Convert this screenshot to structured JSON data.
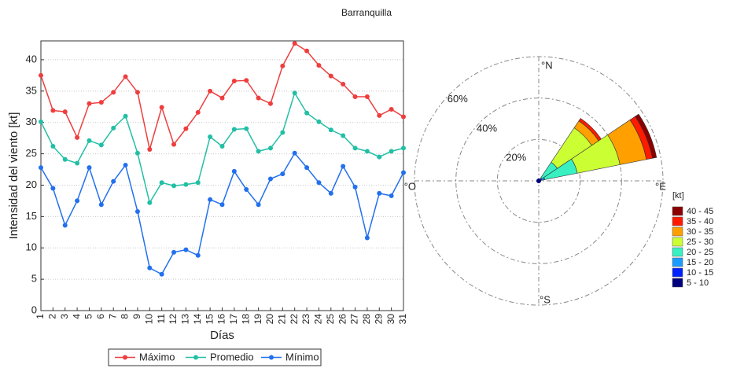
{
  "title": "Barranquilla",
  "chart_data": [
    {
      "type": "line",
      "x": [
        1,
        2,
        3,
        4,
        5,
        6,
        7,
        8,
        9,
        10,
        11,
        12,
        13,
        14,
        15,
        16,
        17,
        18,
        19,
        20,
        21,
        22,
        23,
        24,
        25,
        26,
        27,
        28,
        29,
        30,
        31
      ],
      "xlim": [
        1,
        31
      ],
      "xticks": [
        1,
        2,
        3,
        4,
        5,
        6,
        7,
        8,
        9,
        10,
        11,
        12,
        13,
        14,
        15,
        16,
        17,
        18,
        19,
        20,
        21,
        22,
        23,
        24,
        25,
        26,
        27,
        28,
        29,
        30,
        31
      ],
      "ylim": [
        0,
        43
      ],
      "yticks": [
        0,
        5,
        10,
        15,
        20,
        25,
        30,
        35,
        40
      ],
      "xlabel": "Días",
      "ylabel": "Intensidad del viento [kt]",
      "grid": true,
      "legend": "bottom",
      "series": [
        {
          "name": "Máximo",
          "color": "#ee3e3e",
          "values": [
            37.5,
            31.9,
            31.7,
            27.6,
            33.0,
            33.2,
            34.8,
            37.3,
            34.8,
            25.7,
            32.4,
            26.5,
            29.0,
            31.6,
            35.0,
            33.9,
            36.6,
            36.7,
            33.9,
            33.0,
            39.0,
            42.6,
            41.4,
            39.1,
            37.4,
            36.1,
            34.1,
            34.1,
            31.1,
            32.1,
            30.9
          ]
        },
        {
          "name": "Promedio",
          "color": "#22bfa5",
          "values": [
            30.1,
            26.2,
            24.1,
            23.5,
            27.1,
            26.4,
            29.1,
            31.0,
            25.1,
            17.2,
            20.4,
            19.9,
            20.1,
            20.4,
            27.7,
            26.2,
            28.9,
            29.0,
            25.4,
            25.9,
            28.4,
            34.7,
            31.5,
            30.1,
            28.8,
            27.9,
            25.9,
            25.4,
            24.5,
            25.4,
            25.9
          ]
        },
        {
          "name": "Mínimo",
          "color": "#2270ee",
          "values": [
            22.8,
            19.5,
            13.6,
            17.5,
            22.8,
            16.9,
            20.6,
            23.2,
            15.8,
            6.8,
            5.8,
            9.3,
            9.7,
            8.8,
            17.7,
            16.9,
            22.2,
            19.3,
            16.9,
            21.0,
            21.8,
            25.1,
            22.8,
            20.4,
            18.7,
            23.0,
            19.7,
            11.6,
            18.7,
            18.3,
            22.0
          ]
        }
      ]
    },
    {
      "type": "windrose",
      "directions": [
        45,
        67.5
      ],
      "sector_width": 22.5,
      "rlim": [
        0,
        60
      ],
      "rticks": [
        {
          "value": 20,
          "label": "20%"
        },
        {
          "value": 40,
          "label": "40%"
        },
        {
          "value": 60,
          "label": "60%"
        }
      ],
      "direction_labels": [
        {
          "value": 0,
          "label": "°N"
        },
        {
          "value": 90,
          "label": "°E"
        },
        {
          "value": 180,
          "label": "°S"
        },
        {
          "value": 270,
          "label": "°O"
        }
      ],
      "legend_title": "[kt]",
      "series": [
        {
          "name": "5 - 10",
          "color": "#00007f",
          "values": [
            0.3,
            0.5
          ]
        },
        {
          "name": "10 - 15",
          "color": "#0022ff",
          "values": [
            0.5,
            1
          ]
        },
        {
          "name": "15 - 20",
          "color": "#1a9cff",
          "values": [
            1,
            1.5
          ]
        },
        {
          "name": "20 - 25",
          "color": "#38f0c2",
          "values": [
            9,
            16
          ]
        },
        {
          "name": "25 - 30",
          "color": "#ccff33",
          "values": [
            20,
            21
          ]
        },
        {
          "name": "30 - 35",
          "color": "#ffa000",
          "values": [
            4,
            13
          ]
        },
        {
          "name": "35 - 40",
          "color": "#ff1a00",
          "values": [
            1.5,
            3
          ]
        },
        {
          "name": "40 - 45",
          "color": "#8b0000",
          "values": [
            0,
            2
          ]
        }
      ]
    }
  ]
}
